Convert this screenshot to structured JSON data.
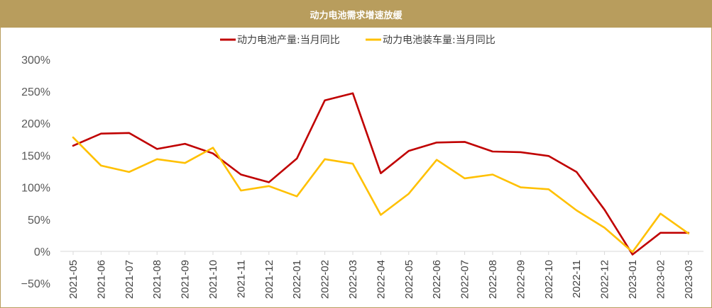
{
  "chart_data": {
    "type": "line",
    "title": "动力电池需求增速放缓",
    "categories": [
      "2021-05",
      "2021-06",
      "2021-07",
      "2021-08",
      "2021-09",
      "2021-10",
      "2021-11",
      "2021-12",
      "2022-01",
      "2022-02",
      "2022-03",
      "2022-04",
      "2022-05",
      "2022-06",
      "2022-07",
      "2022-08",
      "2022-09",
      "2022-10",
      "2022-11",
      "2022-12",
      "2023-01",
      "2023-02",
      "2023-03"
    ],
    "yticks": [
      "300%",
      "250%",
      "200%",
      "150%",
      "100%",
      "50%",
      "0%",
      "−50%"
    ],
    "ylim": [
      -50,
      300
    ],
    "series": [
      {
        "name": "动力电池产量:当月同比",
        "color": "#c00000",
        "values": [
          165,
          184,
          185,
          160,
          168,
          153,
          120,
          108,
          145,
          236,
          247,
          122,
          157,
          170,
          171,
          156,
          155,
          149,
          124,
          65,
          -5,
          29,
          29
        ]
      },
      {
        "name": "动力电池装车量:当月同比",
        "color": "#ffc000",
        "values": [
          178,
          134,
          124,
          144,
          138,
          162,
          95,
          102,
          86,
          144,
          137,
          57,
          90,
          143,
          114,
          120,
          100,
          97,
          64,
          37,
          -1,
          59,
          28
        ]
      }
    ]
  }
}
